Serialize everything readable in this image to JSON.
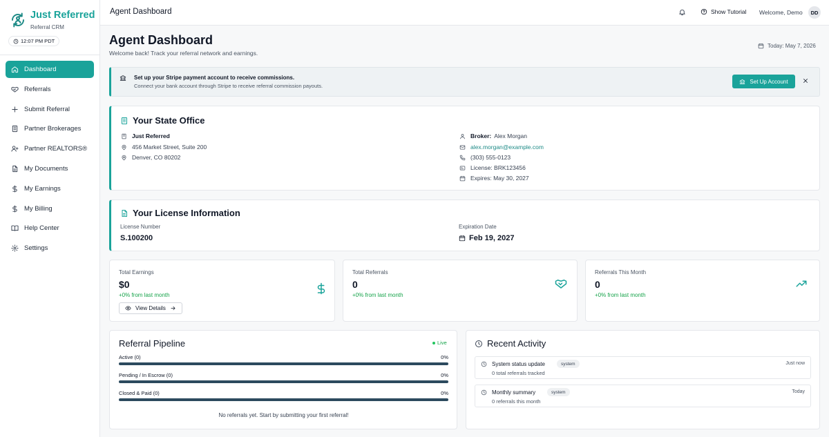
{
  "brand": {
    "name": "Just Referred",
    "subtitle": "Referral CRM",
    "time": "12:07 PM PDT"
  },
  "nav": [
    {
      "label": "Dashboard",
      "icon": "home-icon",
      "active": true
    },
    {
      "label": "Referrals",
      "icon": "handshake-icon"
    },
    {
      "label": "Submit Referral",
      "icon": "plus-icon"
    },
    {
      "label": "Partner Brokerages",
      "icon": "building-icon"
    },
    {
      "label": "Partner REALTORS®",
      "icon": "user-plus-icon"
    },
    {
      "label": "My Documents",
      "icon": "document-icon"
    },
    {
      "label": "My Earnings",
      "icon": "dollar-icon"
    },
    {
      "label": "My Billing",
      "icon": "dollar-icon"
    },
    {
      "label": "Help Center",
      "icon": "book-icon"
    },
    {
      "label": "Settings",
      "icon": "gear-icon"
    }
  ],
  "topbar": {
    "title": "Agent Dashboard",
    "tutorial": "Show Tutorial",
    "welcome": "Welcome, Demo",
    "avatar": "DD"
  },
  "header": {
    "title": "Agent Dashboard",
    "subtitle": "Welcome back! Track your referral network and earnings.",
    "today": "Today:  May 7, 2026"
  },
  "alert": {
    "title": "Set up your Stripe payment account to receive commissions.",
    "text": "Connect your bank account through Stripe to receive referral commission payouts.",
    "button": "Set Up Account"
  },
  "office": {
    "title": "Your State Office",
    "name": "Just Referred",
    "address1": "456 Market Street, Suite 200",
    "address2": "Denver, CO 80202",
    "broker_label": "Broker:",
    "broker_name": "Alex Morgan",
    "email": "alex.morgan@example.com",
    "phone": "(303) 555-0123",
    "license": "License: BRK123456",
    "expires": "Expires: May 30, 2027"
  },
  "license": {
    "title": "Your License Information",
    "number_label": "License Number",
    "number": "S.100200",
    "expiration_label": "Expiration Date",
    "expiration": "Feb 19, 2027"
  },
  "stats": [
    {
      "label": "Total Earnings",
      "value": "$0",
      "change": "+0% from last month",
      "icon": "dollar-icon",
      "button": "View Details"
    },
    {
      "label": "Total Referrals",
      "value": "0",
      "change": "+0% from last month",
      "icon": "handshake-icon"
    },
    {
      "label": "Referrals This Month",
      "value": "0",
      "change": "+0% from last month",
      "icon": "trending-up-icon"
    }
  ],
  "pipeline": {
    "title": "Referral Pipeline",
    "live": "Live",
    "rows": [
      {
        "label": "Active (0)",
        "percent": "0%",
        "fill": 0
      },
      {
        "label": "Pending / In Escrow (0)",
        "percent": "0%",
        "fill": 0
      },
      {
        "label": "Closed & Paid (0)",
        "percent": "0%",
        "fill": 0
      }
    ],
    "empty": "No referrals yet. Start by submitting your first referral!"
  },
  "activity": {
    "title": "Recent Activity",
    "items": [
      {
        "title": "System status update",
        "badge": "system",
        "desc": "0 total referrals tracked",
        "time": "Just now"
      },
      {
        "title": "Monthly summary",
        "badge": "system",
        "desc": "0 referrals this month",
        "time": "Today"
      }
    ]
  },
  "colors": {
    "accent": "#1aa39a",
    "positive": "#16a34a",
    "bar": "#2c4a5e"
  }
}
